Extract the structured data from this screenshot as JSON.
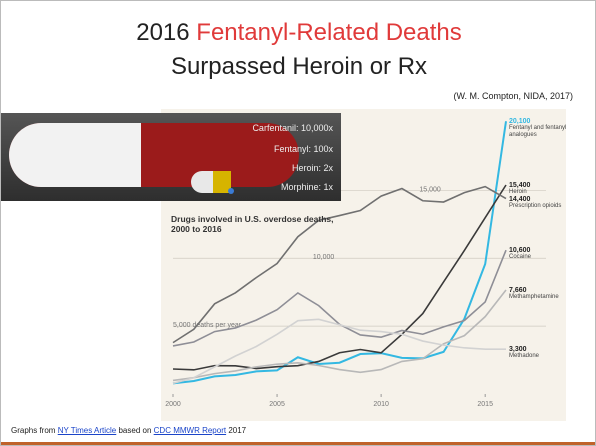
{
  "slide": {
    "title": [
      "2016",
      "Fentanyl-Related Deaths"
    ],
    "subtitle": "Surpassed Heroin or Rx",
    "citation": "(W. M. Compton, NIDA, 2017)",
    "pill_labels": [
      "Carfentanil: 10,000x",
      "Fentanyl: 100x",
      "Heroin: 2x",
      "Morphine: 1x"
    ],
    "footer": [
      "Graphs from",
      "NY Times Article",
      "based on",
      "CDC MMWR Report",
      "2017"
    ]
  },
  "chart_data": {
    "type": "line",
    "title": "Drugs involved in U.S. overdose deaths, 2000 to 2016",
    "x": [
      2000,
      2001,
      2002,
      2003,
      2004,
      2005,
      2006,
      2007,
      2008,
      2009,
      2010,
      2011,
      2012,
      2013,
      2014,
      2015,
      2016
    ],
    "xlim": [
      2000,
      2016
    ],
    "xticks": [
      2000,
      2005,
      2010,
      2015
    ],
    "ylim": [
      0,
      21000
    ],
    "yticks": [
      {
        "value": 5000,
        "label": "5,000 deaths per year"
      },
      {
        "value": 10000,
        "label": "10,000"
      },
      {
        "value": 15000,
        "label": "15,000"
      }
    ],
    "grid": true,
    "series": [
      {
        "name": "Fentanyl and fentanyl analogues",
        "color": "#33b8e2",
        "values": [
          782,
          957,
          1295,
          1400,
          1664,
          1742,
          2707,
          2213,
          2306,
          2946,
          3007,
          2666,
          2628,
          3105,
          5544,
          9580,
          20100
        ],
        "value_labels": [
          null,
          null,
          null,
          null,
          null,
          null,
          null,
          null,
          null,
          null,
          null,
          null,
          null,
          null,
          null,
          null,
          "20,100"
        ]
      },
      {
        "name": "Heroin",
        "color": "#3a3a3a",
        "values": [
          1842,
          1779,
          2089,
          2080,
          1878,
          2009,
          2088,
          2399,
          3041,
          3278,
          3036,
          4397,
          5925,
          8257,
          10574,
          12989,
          15400
        ],
        "value_labels": [
          null,
          null,
          null,
          null,
          null,
          null,
          null,
          null,
          null,
          null,
          null,
          null,
          null,
          null,
          null,
          null,
          "15,400"
        ]
      },
      {
        "name": "Prescription opioids",
        "color": "#707070",
        "values": [
          3785,
          4770,
          6645,
          7456,
          8577,
          9612,
          11589,
          12796,
          13149,
          13523,
          14583,
          15140,
          14240,
          14145,
          14838,
          15281,
          14400
        ],
        "value_labels": [
          null,
          null,
          null,
          null,
          null,
          null,
          null,
          null,
          null,
          null,
          null,
          null,
          null,
          null,
          null,
          null,
          "14,400"
        ]
      },
      {
        "name": "Cocaine",
        "color": "#8e8e96",
        "values": [
          3544,
          3833,
          4599,
          4867,
          5443,
          6208,
          7448,
          6512,
          5129,
          4350,
          4183,
          4681,
          4404,
          4944,
          5415,
          6784,
          10600
        ],
        "value_labels": [
          null,
          null,
          null,
          null,
          null,
          null,
          null,
          null,
          null,
          null,
          null,
          null,
          null,
          null,
          null,
          null,
          "10,600"
        ]
      },
      {
        "name": "Methamphetamine",
        "color": "#b8b8b8",
        "values": [
          1000,
          1200,
          1500,
          1700,
          2000,
          2200,
          2300,
          2100,
          1800,
          1600,
          1800,
          2400,
          2600,
          3700,
          4300,
          5700,
          7660
        ],
        "value_labels": [
          null,
          null,
          null,
          null,
          null,
          null,
          null,
          null,
          null,
          null,
          null,
          null,
          null,
          null,
          null,
          null,
          "7,660"
        ]
      },
      {
        "name": "Methadone",
        "color": "#d2d2d2",
        "values": [
          786,
          1200,
          2000,
          2800,
          3500,
          4400,
          5400,
          5500,
          5100,
          4700,
          4600,
          4400,
          3900,
          3600,
          3400,
          3300,
          3300
        ],
        "value_labels": [
          null,
          null,
          null,
          null,
          null,
          null,
          null,
          null,
          null,
          null,
          null,
          null,
          null,
          null,
          null,
          null,
          "3,300"
        ]
      }
    ]
  }
}
